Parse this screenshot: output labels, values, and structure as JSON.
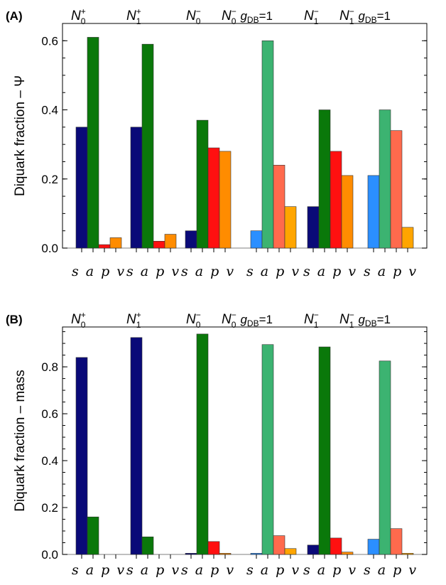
{
  "chart_data": [
    {
      "panel": "(A)",
      "type": "bar",
      "ylabel": "Diquark fraction – Ψ",
      "ylim": [
        0,
        0.65
      ],
      "yticks": [
        "0.0",
        "0.2",
        "0.4",
        "0.6"
      ],
      "group_headers": [
        {
          "base": "N",
          "sub": "0",
          "sup": "+",
          "tail": ""
        },
        {
          "base": "N",
          "sub": "1",
          "sup": "+",
          "tail": ""
        },
        {
          "base": "N",
          "sub": "0",
          "sup": "−",
          "tail": ""
        },
        {
          "base": "N",
          "sub": "0",
          "sup": "−",
          "tail": " g_DB=1"
        },
        {
          "base": "N",
          "sub": "1",
          "sup": "−",
          "tail": ""
        },
        {
          "base": "N",
          "sub": "1",
          "sup": "−",
          "tail": " g_DB=1"
        }
      ],
      "categories_label": "s a p v",
      "groups": [
        {
          "values": [
            0.35,
            0.61,
            0.01,
            0.03
          ],
          "colors": [
            "#0a0a78",
            "#0a780a",
            "#ff1010",
            "#ff8c00"
          ]
        },
        {
          "values": [
            0.35,
            0.59,
            0.02,
            0.04
          ],
          "colors": [
            "#0a0a78",
            "#0a780a",
            "#ff1010",
            "#ff8c00"
          ]
        },
        {
          "values": [
            0.05,
            0.37,
            0.29,
            0.28
          ],
          "colors": [
            "#0a0a78",
            "#0a780a",
            "#ff1010",
            "#ff8c00"
          ]
        },
        {
          "values": [
            0.05,
            0.6,
            0.24,
            0.12
          ],
          "colors": [
            "#2b8fff",
            "#3cb371",
            "#ff6a4d",
            "#ffa500"
          ]
        },
        {
          "values": [
            0.12,
            0.4,
            0.28,
            0.21
          ],
          "colors": [
            "#0a0a78",
            "#0a780a",
            "#ff1010",
            "#ff8c00"
          ]
        },
        {
          "values": [
            0.21,
            0.4,
            0.34,
            0.06
          ],
          "colors": [
            "#2b8fff",
            "#3cb371",
            "#ff6a4d",
            "#ffa500"
          ]
        }
      ]
    },
    {
      "panel": "(B)",
      "type": "bar",
      "ylabel": "Diquark fraction – mass",
      "ylim": [
        0,
        0.97
      ],
      "yticks": [
        "0.0",
        "0.2",
        "0.4",
        "0.6",
        "0.8"
      ],
      "group_headers": [
        {
          "base": "N",
          "sub": "0",
          "sup": "+",
          "tail": ""
        },
        {
          "base": "N",
          "sub": "1",
          "sup": "+",
          "tail": ""
        },
        {
          "base": "N",
          "sub": "0",
          "sup": "−",
          "tail": ""
        },
        {
          "base": "N",
          "sub": "0",
          "sup": "−",
          "tail": " g_DB=1"
        },
        {
          "base": "N",
          "sub": "1",
          "sup": "−",
          "tail": ""
        },
        {
          "base": "N",
          "sub": "1",
          "sup": "−",
          "tail": " g_DB=1"
        }
      ],
      "categories_label": "s a p v",
      "groups": [
        {
          "values": [
            0.84,
            0.16,
            0.0,
            0.0
          ],
          "colors": [
            "#0a0a78",
            "#0a780a",
            "#ff1010",
            "#ff8c00"
          ]
        },
        {
          "values": [
            0.925,
            0.075,
            0.0,
            0.0
          ],
          "colors": [
            "#0a0a78",
            "#0a780a",
            "#ff1010",
            "#ff8c00"
          ]
        },
        {
          "values": [
            0.005,
            0.94,
            0.055,
            0.005
          ],
          "colors": [
            "#0a0a78",
            "#0a780a",
            "#ff1010",
            "#ff8c00"
          ]
        },
        {
          "values": [
            0.005,
            0.895,
            0.08,
            0.025
          ],
          "colors": [
            "#2b8fff",
            "#3cb371",
            "#ff6a4d",
            "#ffa500"
          ]
        },
        {
          "values": [
            0.04,
            0.885,
            0.07,
            0.01
          ],
          "colors": [
            "#0a0a78",
            "#0a780a",
            "#ff1010",
            "#ff8c00"
          ]
        },
        {
          "values": [
            0.065,
            0.825,
            0.11,
            0.005
          ],
          "colors": [
            "#2b8fff",
            "#3cb371",
            "#ff6a4d",
            "#ffa500"
          ]
        }
      ]
    }
  ]
}
